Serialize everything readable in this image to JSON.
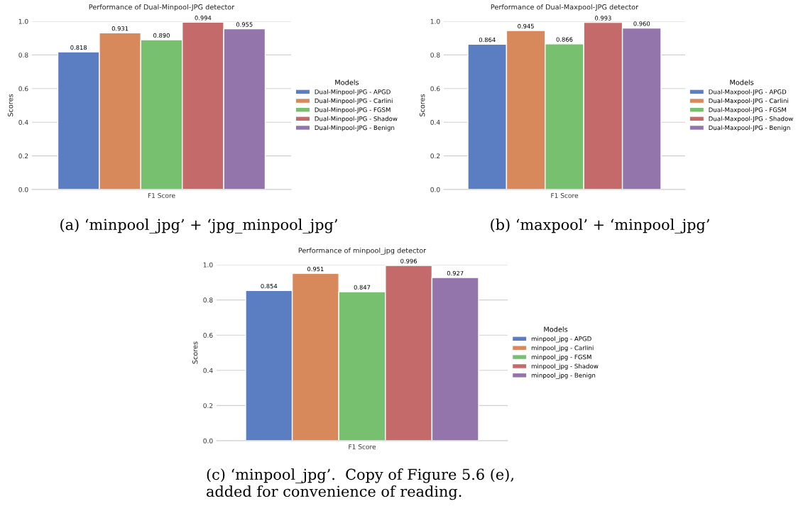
{
  "chart_data": [
    {
      "type": "bar",
      "title": "Performance of Dual-Minpool-JPG detector",
      "ylabel": "Scores",
      "categories": [
        "F1 Score"
      ],
      "legend_title": "Models",
      "legend": "right",
      "grid": "y",
      "ylim": [
        0,
        1.0
      ],
      "yticks": [
        {
          "value": 0,
          "label": "0.0"
        },
        {
          "value": 0.2,
          "label": "0.2"
        },
        {
          "value": 0.4,
          "label": "0.4"
        },
        {
          "value": 0.6,
          "label": "0.6"
        },
        {
          "value": 0.8,
          "label": "0.8"
        },
        {
          "value": 1.0,
          "label": "1.0"
        }
      ],
      "series": [
        {
          "name": "Dual-Minpool-JPG - APGD",
          "color": "#5b7dc2",
          "values": [
            0.818
          ],
          "value_labels": [
            "0.818"
          ]
        },
        {
          "name": "Dual-Minpool-JPG - Carlini",
          "color": "#d8895c",
          "values": [
            0.931
          ],
          "value_labels": [
            "0.931"
          ]
        },
        {
          "name": "Dual-Minpool-JPG - FGSM",
          "color": "#77c070",
          "values": [
            0.89
          ],
          "value_labels": [
            "0.890"
          ]
        },
        {
          "name": "Dual-Minpool-JPG - Shadow",
          "color": "#c56a6a",
          "values": [
            0.994
          ],
          "value_labels": [
            "0.994"
          ]
        },
        {
          "name": "Dual-Minpool-JPG - Benign",
          "color": "#9475ab",
          "values": [
            0.955
          ],
          "value_labels": [
            "0.955"
          ]
        }
      ],
      "annotations": [
        "(a) ‘minpool_jpg’ + ‘jpg_minpool_jpg’"
      ]
    },
    {
      "type": "bar",
      "title": "Performance of Dual-Maxpool-JPG detector",
      "ylabel": "Scores",
      "categories": [
        "F1 Score"
      ],
      "legend_title": "Models",
      "legend": "right",
      "grid": "y",
      "ylim": [
        0,
        1.0
      ],
      "yticks": [
        {
          "value": 0,
          "label": "0.0"
        },
        {
          "value": 0.2,
          "label": "0.2"
        },
        {
          "value": 0.4,
          "label": "0.4"
        },
        {
          "value": 0.6,
          "label": "0.6"
        },
        {
          "value": 0.8,
          "label": "0.8"
        },
        {
          "value": 1.0,
          "label": "1.0"
        }
      ],
      "series": [
        {
          "name": "Dual-Maxpool-JPG - APGD",
          "color": "#5b7dc2",
          "values": [
            0.864
          ],
          "value_labels": [
            "0.864"
          ]
        },
        {
          "name": "Dual-Maxpool-JPG - Carlini",
          "color": "#d8895c",
          "values": [
            0.945
          ],
          "value_labels": [
            "0.945"
          ]
        },
        {
          "name": "Dual-Maxpool-JPG - FGSM",
          "color": "#77c070",
          "values": [
            0.866
          ],
          "value_labels": [
            "0.866"
          ]
        },
        {
          "name": "Dual-Maxpool-JPG - Shadow",
          "color": "#c56a6a",
          "values": [
            0.993
          ],
          "value_labels": [
            "0.993"
          ]
        },
        {
          "name": "Dual-Maxpool-JPG - Benign",
          "color": "#9475ab",
          "values": [
            0.96
          ],
          "value_labels": [
            "0.960"
          ]
        }
      ],
      "annotations": [
        "(b) ‘maxpool’ + ‘minpool_jpg’"
      ]
    },
    {
      "type": "bar",
      "title": "Performance of minpool_jpg detector",
      "ylabel": "Scores",
      "categories": [
        "F1 Score"
      ],
      "legend_title": "Models",
      "legend": "right",
      "grid": "y",
      "ylim": [
        0,
        1.0
      ],
      "yticks": [
        {
          "value": 0,
          "label": "0.0"
        },
        {
          "value": 0.2,
          "label": "0.2"
        },
        {
          "value": 0.4,
          "label": "0.4"
        },
        {
          "value": 0.6,
          "label": "0.6"
        },
        {
          "value": 0.8,
          "label": "0.8"
        },
        {
          "value": 1.0,
          "label": "1.0"
        }
      ],
      "series": [
        {
          "name": "minpool_jpg - APGD",
          "color": "#5b7dc2",
          "values": [
            0.854
          ],
          "value_labels": [
            "0.854"
          ]
        },
        {
          "name": "minpool_jpg - Carlini",
          "color": "#d8895c",
          "values": [
            0.951
          ],
          "value_labels": [
            "0.951"
          ]
        },
        {
          "name": "minpool_jpg - FGSM",
          "color": "#77c070",
          "values": [
            0.847
          ],
          "value_labels": [
            "0.847"
          ]
        },
        {
          "name": "minpool_jpg - Shadow",
          "color": "#c56a6a",
          "values": [
            0.996
          ],
          "value_labels": [
            "0.996"
          ]
        },
        {
          "name": "minpool_jpg - Benign",
          "color": "#9475ab",
          "values": [
            0.927
          ],
          "value_labels": [
            "0.927"
          ]
        }
      ],
      "annotations": [
        "(c) ‘minpool_jpg’.  Copy of Figure 5.6 (e),\nadded for convenience of reading."
      ]
    }
  ]
}
